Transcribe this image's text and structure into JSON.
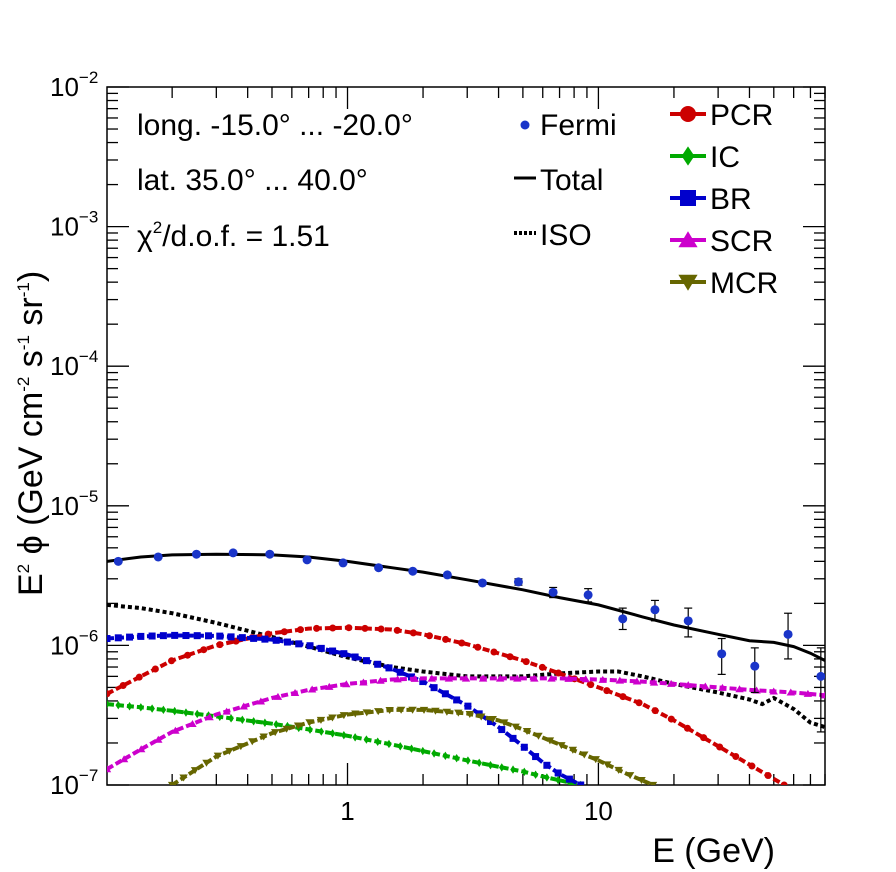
{
  "chart_data": {
    "type": "line",
    "xscale": "log",
    "yscale": "log",
    "xlim": [
      0.11,
      80
    ],
    "ylim": [
      1e-07,
      0.01
    ],
    "xlabel": "E (GeV)",
    "ylabel": {
      "prefix": "E",
      "sup1": "2",
      "phi": " ϕ (GeV cm",
      "sup2": "-2",
      "mid1": " s",
      "sup3": "-1",
      "mid2": " sr",
      "sup4": "-1",
      "suffix": ")"
    },
    "x_ticks": [
      {
        "value": 1,
        "label": "1"
      },
      {
        "value": 10,
        "label": "10"
      }
    ],
    "y_ticks": [
      {
        "value": 1e-07,
        "base": "10",
        "exp": "−7"
      },
      {
        "value": 1e-06,
        "base": "10",
        "exp": "−6"
      },
      {
        "value": 1e-05,
        "base": "10",
        "exp": "−5"
      },
      {
        "value": 0.0001,
        "base": "10",
        "exp": "−4"
      },
      {
        "value": 0.001,
        "base": "10",
        "exp": "−3"
      },
      {
        "value": 0.01,
        "base": "10",
        "exp": "−2"
      }
    ],
    "info": {
      "longitude": "long. -15.0° ... -20.0°",
      "latitude": "lat. 35.0° ... 40.0°",
      "chi2": {
        "chi": "χ",
        "sup": "2",
        "rest": "/d.o.f. = 1.51"
      }
    },
    "legend_left": [
      {
        "label": "Fermi",
        "style": "points",
        "color": "#1a35c9"
      },
      {
        "label": "Total",
        "style": "solid",
        "color": "#000000"
      },
      {
        "label": "ISO",
        "style": "dotted",
        "color": "#000000"
      }
    ],
    "legend_right": [
      {
        "label": "PCR",
        "marker": "circle",
        "color": "#cc0000"
      },
      {
        "label": "IC",
        "marker": "diamond",
        "color": "#00aa00"
      },
      {
        "label": "BR",
        "marker": "square",
        "color": "#0000cc"
      },
      {
        "label": "SCR",
        "marker": "triangle-up",
        "color": "#cc00cc"
      },
      {
        "label": "MCR",
        "marker": "triangle-down",
        "color": "#666600"
      }
    ],
    "fermi": {
      "name": "Fermi",
      "color": "#1a35c9",
      "points": [
        {
          "x": 0.122,
          "y": 4e-06,
          "err_lo": 0,
          "err_hi": 0
        },
        {
          "x": 0.176,
          "y": 4.3e-06,
          "err_lo": 0,
          "err_hi": 0
        },
        {
          "x": 0.25,
          "y": 4.5e-06,
          "err_lo": 0,
          "err_hi": 0
        },
        {
          "x": 0.35,
          "y": 4.6e-06,
          "err_lo": 0,
          "err_hi": 0
        },
        {
          "x": 0.49,
          "y": 4.5e-06,
          "err_lo": 0,
          "err_hi": 0
        },
        {
          "x": 0.69,
          "y": 4.1e-06,
          "err_lo": 0,
          "err_hi": 0
        },
        {
          "x": 0.96,
          "y": 3.9e-06,
          "err_lo": 0,
          "err_hi": 0
        },
        {
          "x": 1.33,
          "y": 3.6e-06,
          "err_lo": 0,
          "err_hi": 0
        },
        {
          "x": 1.82,
          "y": 3.4e-06,
          "err_lo": 0,
          "err_hi": 0
        },
        {
          "x": 2.5,
          "y": 3.2e-06,
          "err_lo": 0,
          "err_hi": 0
        },
        {
          "x": 3.45,
          "y": 2.8e-06,
          "err_lo": 0,
          "err_hi": 0
        },
        {
          "x": 4.8,
          "y": 2.85e-06,
          "err_lo": 1.5e-07,
          "err_hi": 1.5e-07
        },
        {
          "x": 6.6,
          "y": 2.4e-06,
          "err_lo": 2e-07,
          "err_hi": 2e-07
        },
        {
          "x": 9.1,
          "y": 2.3e-06,
          "err_lo": 2.5e-07,
          "err_hi": 2.5e-07
        },
        {
          "x": 12.5,
          "y": 1.55e-06,
          "err_lo": 2.5e-07,
          "err_hi": 3e-07
        },
        {
          "x": 16.8,
          "y": 1.8e-06,
          "err_lo": 3e-07,
          "err_hi": 3e-07
        },
        {
          "x": 22.8,
          "y": 1.5e-06,
          "err_lo": 3.5e-07,
          "err_hi": 3.5e-07
        },
        {
          "x": 31,
          "y": 8.7e-07,
          "err_lo": 2.5e-07,
          "err_hi": 2.5e-07
        },
        {
          "x": 42,
          "y": 7.1e-07,
          "err_lo": 2.5e-07,
          "err_hi": 2.5e-07
        },
        {
          "x": 57,
          "y": 1.2e-06,
          "err_lo": 4e-07,
          "err_hi": 5e-07
        },
        {
          "x": 77,
          "y": 6e-07,
          "err_lo": 3.6e-07,
          "err_hi": 3.6e-07
        }
      ]
    },
    "series": [
      {
        "name": "Total",
        "color": "#000000",
        "style": "solid",
        "marker": "none",
        "x": [
          0.11,
          0.15,
          0.2,
          0.3,
          0.5,
          0.7,
          1.0,
          1.5,
          2.0,
          3.0,
          5.0,
          7.0,
          10,
          15,
          20,
          30,
          40,
          50,
          60,
          70,
          80
        ],
        "y": [
          4e-06,
          4.3e-06,
          4.45e-06,
          4.5e-06,
          4.45e-06,
          4.3e-06,
          4e-06,
          3.6e-06,
          3.35e-06,
          2.95e-06,
          2.5e-06,
          2.2e-06,
          1.95e-06,
          1.6e-06,
          1.4e-06,
          1.2e-06,
          1.08e-06,
          1.05e-06,
          9.8e-07,
          8.8e-07,
          7.8e-07
        ]
      },
      {
        "name": "ISO",
        "color": "#000000",
        "style": "dotted",
        "marker": "none",
        "x": [
          0.11,
          0.15,
          0.2,
          0.3,
          0.5,
          0.7,
          1.0,
          1.5,
          2.0,
          3.0,
          5.0,
          7.0,
          10,
          12,
          15,
          20,
          30,
          40,
          45,
          50,
          60,
          70,
          80
        ],
        "y": [
          1.95e-06,
          1.85e-06,
          1.7e-06,
          1.45e-06,
          1.15e-06,
          9.8e-07,
          8.2e-07,
          7e-07,
          6.5e-07,
          6e-07,
          6e-07,
          6.3e-07,
          6.5e-07,
          6.5e-07,
          6e-07,
          5.3e-07,
          4.6e-07,
          4.1e-07,
          3.8e-07,
          4.2e-07,
          3.5e-07,
          2.8e-07,
          2.6e-07
        ]
      },
      {
        "name": "PCR",
        "color": "#cc0000",
        "style": "dashed",
        "marker": "circle",
        "x": [
          0.11,
          0.15,
          0.2,
          0.3,
          0.5,
          0.7,
          1.0,
          1.5,
          2.0,
          3.0,
          5.0,
          7.0,
          10,
          15,
          20,
          30,
          40,
          55
        ],
        "y": [
          4.5e-07,
          6e-07,
          7.8e-07,
          1e-06,
          1.22e-06,
          1.32e-06,
          1.34e-06,
          1.3e-06,
          1.2e-06,
          1.02e-06,
          7.8e-07,
          6.3e-07,
          5e-07,
          3.8e-07,
          2.9e-07,
          1.9e-07,
          1.4e-07,
          1e-07
        ]
      },
      {
        "name": "IC",
        "color": "#00aa00",
        "style": "dashed",
        "marker": "diamond",
        "x": [
          0.11,
          0.15,
          0.2,
          0.3,
          0.5,
          0.7,
          1.0,
          1.5,
          2.0,
          3.0,
          4.0,
          5.0,
          6.0,
          7.0,
          8.5
        ],
        "y": [
          3.8e-07,
          3.6e-07,
          3.4e-07,
          3.1e-07,
          2.75e-07,
          2.5e-07,
          2.25e-07,
          1.95e-07,
          1.75e-07,
          1.5e-07,
          1.35e-07,
          1.25e-07,
          1.15e-07,
          1.08e-07,
          1e-07
        ]
      },
      {
        "name": "BR",
        "color": "#0000cc",
        "style": "dashed",
        "marker": "square",
        "x": [
          0.11,
          0.15,
          0.2,
          0.3,
          0.5,
          0.7,
          1.0,
          1.5,
          2.0,
          3.0,
          4.0,
          5.0,
          6.0,
          7.0,
          8.5
        ],
        "y": [
          1.12e-06,
          1.16e-06,
          1.18e-06,
          1.17e-06,
          1.1e-06,
          1e-06,
          8.6e-07,
          6.8e-07,
          5.5e-07,
          3.7e-07,
          2.6e-07,
          1.9e-07,
          1.45e-07,
          1.2e-07,
          1e-07
        ]
      },
      {
        "name": "SCR",
        "color": "#cc00cc",
        "style": "dashed",
        "marker": "triangle-up",
        "x": [
          0.11,
          0.15,
          0.2,
          0.3,
          0.5,
          0.7,
          1.0,
          1.5,
          2.0,
          3.0,
          5.0,
          7.0,
          10,
          15,
          20,
          30,
          40,
          60,
          80
        ],
        "y": [
          1.3e-07,
          1.8e-07,
          2.4e-07,
          3.2e-07,
          4.2e-07,
          4.8e-07,
          5.3e-07,
          5.7e-07,
          5.8e-07,
          5.8e-07,
          5.8e-07,
          5.8e-07,
          5.7e-07,
          5.5e-07,
          5.3e-07,
          5e-07,
          4.8e-07,
          4.6e-07,
          4.4e-07
        ]
      },
      {
        "name": "MCR",
        "color": "#666600",
        "style": "dashed",
        "marker": "triangle-down",
        "x": [
          0.2,
          0.3,
          0.5,
          0.7,
          1.0,
          1.5,
          2.0,
          3.0,
          4.0,
          5.0,
          7.0,
          10,
          13,
          16.5
        ],
        "y": [
          1e-07,
          1.6e-07,
          2.35e-07,
          2.8e-07,
          3.2e-07,
          3.45e-07,
          3.45e-07,
          3.25e-07,
          2.9e-07,
          2.5e-07,
          1.95e-07,
          1.5e-07,
          1.2e-07,
          1e-07
        ]
      }
    ]
  }
}
